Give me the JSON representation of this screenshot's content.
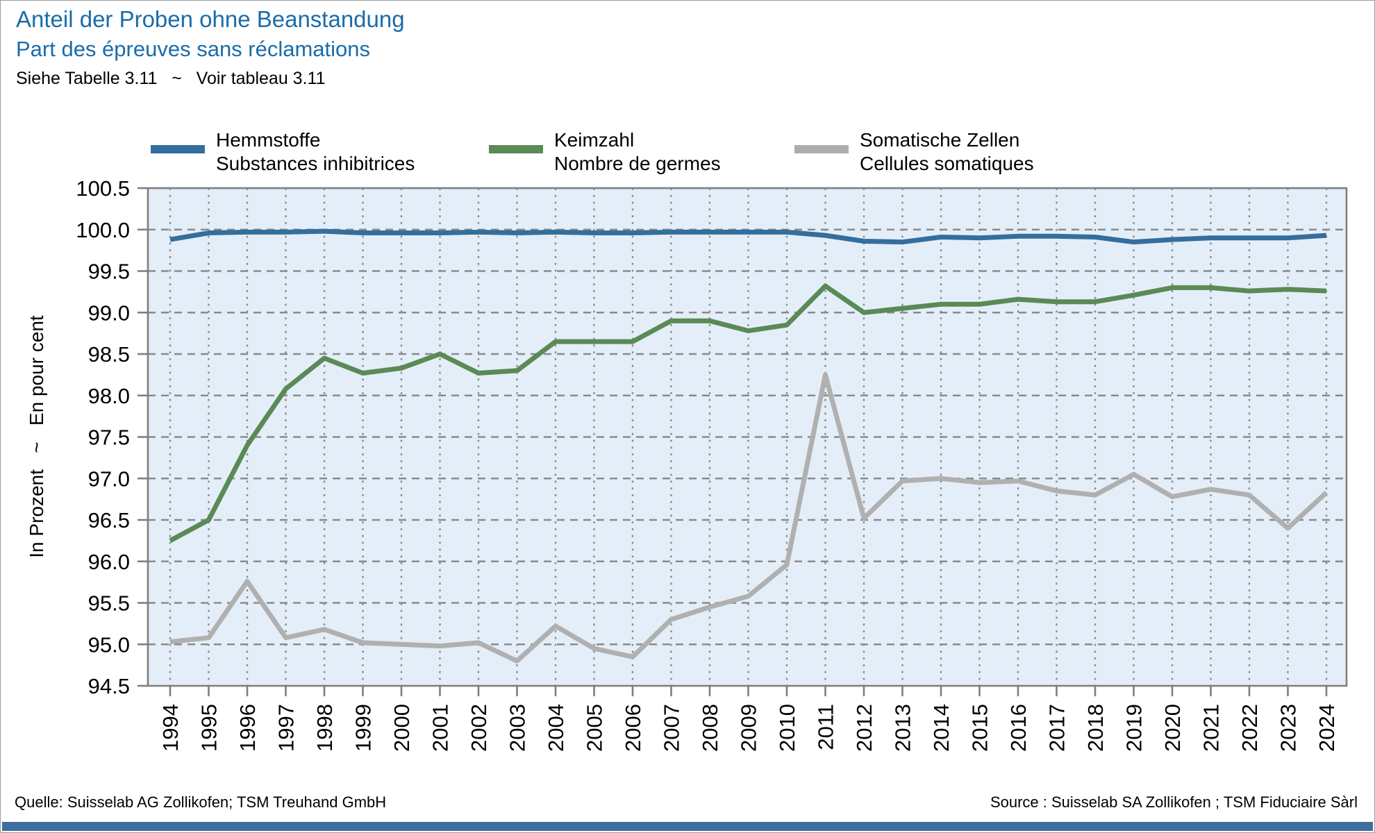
{
  "header": {
    "title_de": "Anteil der Proben ohne Beanstandung",
    "title_fr": "Part des épreuves sans réclamations",
    "subtitle": "Siehe Tabelle 3.11   ~   Voir tableau 3.11"
  },
  "legend": {
    "items": [
      {
        "id": "hemmstoffe",
        "label_de": "Hemmstoffe",
        "label_fr": "Substances inhibitrices",
        "color": "#336e9e"
      },
      {
        "id": "keimzahl",
        "label_de": "Keimzahl",
        "label_fr": "Nombre de germes",
        "color": "#5a8a55"
      },
      {
        "id": "somatische-zellen",
        "label_de": "Somatische Zellen",
        "label_fr": "Cellules somatiques",
        "color": "#adadad"
      }
    ]
  },
  "y_axis_title": "In Prozent   ~   En pour cent",
  "footer": {
    "source_de": "Quelle: Suisselab AG Zollikofen; TSM Treuhand GmbH",
    "source_fr": "Source : Suisselab SA Zollikofen ; TSM Fiduciaire Sàrl",
    "bar_color": "#3f6e9e"
  },
  "chart_data": {
    "type": "line",
    "title": "Anteil der Proben ohne Beanstandung ~ Part des épreuves sans réclamations",
    "ylabel": "In Prozent ~ En pour cent",
    "xlabel": "",
    "ylim": [
      94.5,
      100.5
    ],
    "ytick_step": 0.5,
    "grid": true,
    "legend_position": "top",
    "plot_bg": "#e4eef9",
    "grid_color": "#8a8a8a",
    "axis_color": "#7f7f7f",
    "categories": [
      1994,
      1995,
      1996,
      1997,
      1998,
      1999,
      2000,
      2001,
      2002,
      2003,
      2004,
      2005,
      2006,
      2007,
      2008,
      2009,
      2010,
      2011,
      2012,
      2013,
      2014,
      2015,
      2016,
      2017,
      2018,
      2019,
      2020,
      2021,
      2022,
      2023,
      2024
    ],
    "series": [
      {
        "id": "hemmstoffe",
        "name": "Hemmstoffe / Substances inhibitrices",
        "color": "#336e9e",
        "values": [
          99.88,
          99.96,
          99.97,
          99.97,
          99.98,
          99.96,
          99.96,
          99.96,
          99.97,
          99.96,
          99.97,
          99.96,
          99.96,
          99.97,
          99.97,
          99.97,
          99.97,
          99.93,
          99.86,
          99.85,
          99.91,
          99.9,
          99.92,
          99.92,
          99.91,
          99.85,
          99.88,
          99.9,
          99.9,
          99.9,
          99.93
        ]
      },
      {
        "id": "keimzahl",
        "name": "Keimzahl / Nombre de germes",
        "color": "#5a8a55",
        "values": [
          96.25,
          96.5,
          97.4,
          98.08,
          98.45,
          98.27,
          98.33,
          98.5,
          98.27,
          98.3,
          98.65,
          98.65,
          98.65,
          98.9,
          98.9,
          98.78,
          98.85,
          99.32,
          99.0,
          99.05,
          99.1,
          99.1,
          99.16,
          99.13,
          99.13,
          99.21,
          99.3,
          99.3,
          99.26,
          99.28,
          99.26
        ]
      },
      {
        "id": "somatische-zellen",
        "name": "Somatische Zellen / Cellules somatiques",
        "color": "#b0b0b0",
        "values": [
          95.03,
          95.08,
          95.76,
          95.08,
          95.18,
          95.02,
          95.0,
          94.98,
          95.02,
          94.8,
          95.22,
          94.95,
          94.85,
          95.3,
          95.45,
          95.58,
          95.96,
          98.25,
          96.52,
          96.97,
          97.0,
          96.95,
          96.97,
          96.85,
          96.8,
          97.05,
          96.78,
          96.87,
          96.8,
          96.4,
          96.83
        ]
      }
    ]
  }
}
